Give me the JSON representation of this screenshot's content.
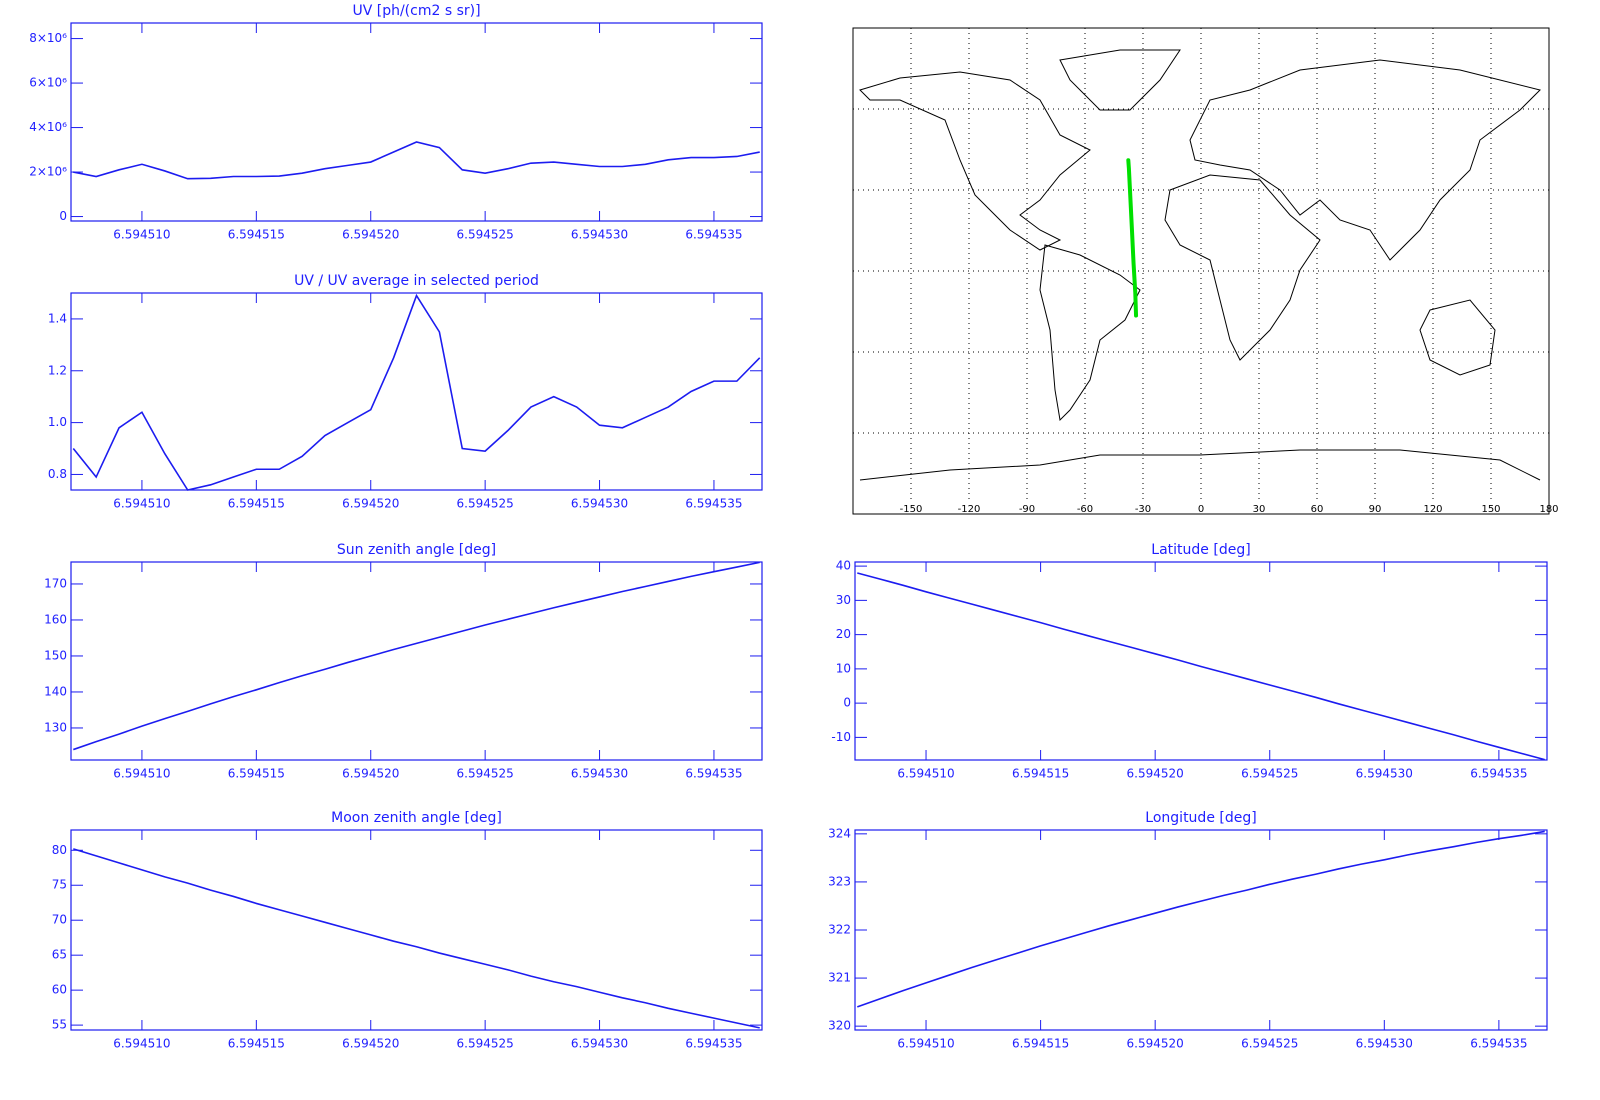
{
  "chart_data": [
    {
      "type": "line",
      "title": "UV [ph/(cm2 s sr)]",
      "color": "#1c1cf0",
      "x": [
        6.594507,
        6.594508,
        6.594509,
        6.59451,
        6.594511,
        6.594512,
        6.594513,
        6.594514,
        6.594515,
        6.594516,
        6.594517,
        6.594518,
        6.594519,
        6.59452,
        6.594521,
        6.594522,
        6.594523,
        6.594524,
        6.594525,
        6.594526,
        6.594527,
        6.594528,
        6.594529,
        6.59453,
        6.594531,
        6.594532,
        6.594533,
        6.594534,
        6.594535,
        6.594536,
        6.594537
      ],
      "values": [
        2000000,
        1800000,
        2100000,
        2350000,
        2050000,
        1700000,
        1720000,
        1800000,
        1800000,
        1820000,
        1950000,
        2150000,
        2300000,
        2450000,
        2900000,
        3350000,
        3100000,
        2100000,
        1950000,
        2150000,
        2400000,
        2450000,
        2350000,
        2250000,
        2250000,
        2350000,
        2550000,
        2650000,
        2650000,
        2700000,
        2900000
      ],
      "xlim": [
        6.5945069,
        6.5945371
      ],
      "xticks": [
        {
          "value": 6.59451,
          "label": "6.594510"
        },
        6.594515,
        {
          "value": 6.59452,
          "label": "6.594520"
        },
        6.594525,
        {
          "value": 6.59453,
          "label": "6.594530"
        },
        6.594535
      ],
      "ylim": [
        -200000,
        8700000
      ],
      "yticks": [
        0,
        {
          "value": 2000000,
          "label": "2×10⁶"
        },
        {
          "value": 4000000,
          "label": "4×10⁶"
        },
        {
          "value": 6000000,
          "label": "6×10⁶"
        },
        {
          "value": 8000000,
          "label": "8×10⁶"
        }
      ]
    },
    {
      "type": "map",
      "color": "#00e000",
      "x": [
        -37.6,
        -37.3,
        -36.6,
        -35.7,
        -34.9,
        -34.0,
        -33.6
      ],
      "values": [
        41,
        38,
        28,
        15,
        3,
        -8,
        -16.5
      ],
      "xlim": [
        -180,
        180
      ],
      "ylim": [
        -90,
        90
      ],
      "xticks": [
        -150,
        -120,
        -90,
        -60,
        -30,
        0,
        30,
        60,
        90,
        120,
        150,
        180
      ]
    },
    {
      "type": "line",
      "title": "UV / UV average in selected period",
      "color": "#1c1cf0",
      "x": [
        6.594507,
        6.594508,
        6.594509,
        6.59451,
        6.594511,
        6.594512,
        6.594513,
        6.594514,
        6.594515,
        6.594516,
        6.594517,
        6.594518,
        6.594519,
        6.59452,
        6.594521,
        6.594522,
        6.594523,
        6.594524,
        6.594525,
        6.594526,
        6.594527,
        6.594528,
        6.594529,
        6.59453,
        6.594531,
        6.594532,
        6.594533,
        6.594534,
        6.594535,
        6.594536,
        6.594537
      ],
      "values": [
        0.9,
        0.79,
        0.98,
        1.04,
        0.88,
        0.74,
        0.76,
        0.79,
        0.82,
        0.82,
        0.87,
        0.95,
        1.0,
        1.05,
        1.25,
        1.49,
        1.35,
        0.9,
        0.89,
        0.97,
        1.06,
        1.1,
        1.06,
        0.99,
        0.98,
        1.02,
        1.06,
        1.12,
        1.16,
        1.16,
        1.25
      ],
      "xlim": [
        6.5945069,
        6.5945371
      ],
      "xticks": [
        {
          "value": 6.59451,
          "label": "6.594510"
        },
        6.594515,
        {
          "value": 6.59452,
          "label": "6.594520"
        },
        6.594525,
        {
          "value": 6.59453,
          "label": "6.594530"
        },
        6.594535
      ],
      "ylim": [
        0.74,
        1.5
      ],
      "yticks": [
        0.8,
        {
          "value": 1.0,
          "label": "1.0"
        },
        1.2,
        1.4
      ]
    },
    {
      "type": "line",
      "title": "Sun zenith angle [deg]",
      "color": "#1c1cf0",
      "x": [
        6.594507,
        6.594508,
        6.594509,
        6.59451,
        6.594511,
        6.594512,
        6.594513,
        6.594514,
        6.594515,
        6.594516,
        6.594517,
        6.594518,
        6.594519,
        6.59452,
        6.594521,
        6.594522,
        6.594523,
        6.594524,
        6.594525,
        6.594526,
        6.594527,
        6.594528,
        6.594529,
        6.59453,
        6.594531,
        6.594532,
        6.594533,
        6.594534,
        6.594535,
        6.594536,
        6.594537
      ],
      "values": [
        124.0,
        126.2,
        128.3,
        130.5,
        132.6,
        134.6,
        136.7,
        138.7,
        140.6,
        142.6,
        144.5,
        146.3,
        148.2,
        150.0,
        151.8,
        153.5,
        155.2,
        156.9,
        158.6,
        160.2,
        161.8,
        163.4,
        164.9,
        166.4,
        167.9,
        169.3,
        170.7,
        172.1,
        173.4,
        174.7,
        176.0
      ],
      "xlim": [
        6.5945069,
        6.5945371
      ],
      "xticks": [
        {
          "value": 6.59451,
          "label": "6.594510"
        },
        6.594515,
        {
          "value": 6.59452,
          "label": "6.594520"
        },
        6.594525,
        {
          "value": 6.59453,
          "label": "6.594530"
        },
        6.594535
      ],
      "ylim": [
        121.1,
        176.1
      ],
      "yticks": [
        130,
        140,
        150,
        160,
        170
      ]
    },
    {
      "type": "line",
      "title": "Latitude [deg]",
      "color": "#1c1cf0",
      "x": [
        6.594507,
        6.594508,
        6.594509,
        6.59451,
        6.594511,
        6.594512,
        6.594513,
        6.594514,
        6.594515,
        6.594516,
        6.594517,
        6.594518,
        6.594519,
        6.59452,
        6.594521,
        6.594522,
        6.594523,
        6.594524,
        6.594525,
        6.594526,
        6.594527,
        6.594528,
        6.594529,
        6.59453,
        6.594531,
        6.594532,
        6.594533,
        6.594534,
        6.594535,
        6.594536,
        6.594537
      ],
      "values": [
        38.0,
        36.2,
        34.4,
        32.5,
        30.7,
        28.9,
        27.1,
        25.3,
        23.5,
        21.6,
        19.8,
        18.0,
        16.2,
        14.4,
        12.6,
        10.7,
        8.9,
        7.1,
        5.3,
        3.5,
        1.7,
        -0.2,
        -2.0,
        -3.8,
        -5.6,
        -7.4,
        -9.2,
        -11.1,
        -12.9,
        -14.7,
        -16.5
      ],
      "xlim": [
        6.5945069,
        6.5945371
      ],
      "xticks": [
        {
          "value": 6.59451,
          "label": "6.594510"
        },
        6.594515,
        {
          "value": 6.59452,
          "label": "6.594520"
        },
        6.594525,
        {
          "value": 6.59453,
          "label": "6.594530"
        },
        6.594535
      ],
      "ylim": [
        -16.6,
        41.2
      ],
      "yticks": [
        -10,
        0,
        10,
        20,
        30,
        40
      ]
    },
    {
      "type": "line",
      "title": "Moon zenith angle [deg]",
      "color": "#1c1cf0",
      "x": [
        6.594507,
        6.594508,
        6.594509,
        6.59451,
        6.594511,
        6.594512,
        6.594513,
        6.594514,
        6.594515,
        6.594516,
        6.594517,
        6.594518,
        6.594519,
        6.59452,
        6.594521,
        6.594522,
        6.594523,
        6.594524,
        6.594525,
        6.594526,
        6.594527,
        6.594528,
        6.594529,
        6.59453,
        6.594531,
        6.594532,
        6.594533,
        6.594534,
        6.594535,
        6.594536,
        6.594537
      ],
      "values": [
        80.2,
        79.2,
        78.2,
        77.2,
        76.2,
        75.3,
        74.3,
        73.4,
        72.4,
        71.5,
        70.6,
        69.7,
        68.8,
        67.9,
        67.0,
        66.2,
        65.3,
        64.5,
        63.7,
        62.9,
        62.0,
        61.2,
        60.5,
        59.7,
        58.9,
        58.2,
        57.4,
        56.7,
        56.0,
        55.3,
        54.6
      ],
      "xlim": [
        6.5945069,
        6.5945371
      ],
      "xticks": [
        {
          "value": 6.59451,
          "label": "6.594510"
        },
        6.594515,
        {
          "value": 6.59452,
          "label": "6.594520"
        },
        6.594525,
        {
          "value": 6.59453,
          "label": "6.594530"
        },
        6.594535
      ],
      "ylim": [
        54.3,
        82.9
      ],
      "yticks": [
        55,
        60,
        65,
        70,
        75,
        80
      ]
    },
    {
      "type": "line",
      "title": "Longitude [deg]",
      "color": "#1c1cf0",
      "x": [
        6.594507,
        6.594508,
        6.594509,
        6.59451,
        6.594511,
        6.594512,
        6.594513,
        6.594514,
        6.594515,
        6.594516,
        6.594517,
        6.594518,
        6.594519,
        6.59452,
        6.594521,
        6.594522,
        6.594523,
        6.594524,
        6.594525,
        6.594526,
        6.594527,
        6.594528,
        6.594529,
        6.59453,
        6.594531,
        6.594532,
        6.594533,
        6.594534,
        6.594535,
        6.594536,
        6.594537
      ],
      "values": [
        320.4,
        320.57,
        320.74,
        320.9,
        321.06,
        321.22,
        321.37,
        321.52,
        321.67,
        321.81,
        321.95,
        322.09,
        322.22,
        322.35,
        322.48,
        322.6,
        322.72,
        322.83,
        322.95,
        323.06,
        323.16,
        323.27,
        323.37,
        323.46,
        323.56,
        323.65,
        323.73,
        323.82,
        323.9,
        323.97,
        324.05
      ],
      "xlim": [
        6.5945069,
        6.5945371
      ],
      "xticks": [
        {
          "value": 6.59451,
          "label": "6.594510"
        },
        6.594515,
        {
          "value": 6.59452,
          "label": "6.594520"
        },
        6.594525,
        {
          "value": 6.59453,
          "label": "6.594530"
        },
        6.594535
      ],
      "ylim": [
        319.92,
        324.08
      ],
      "yticks": [
        320,
        321,
        322,
        323,
        324
      ]
    }
  ]
}
